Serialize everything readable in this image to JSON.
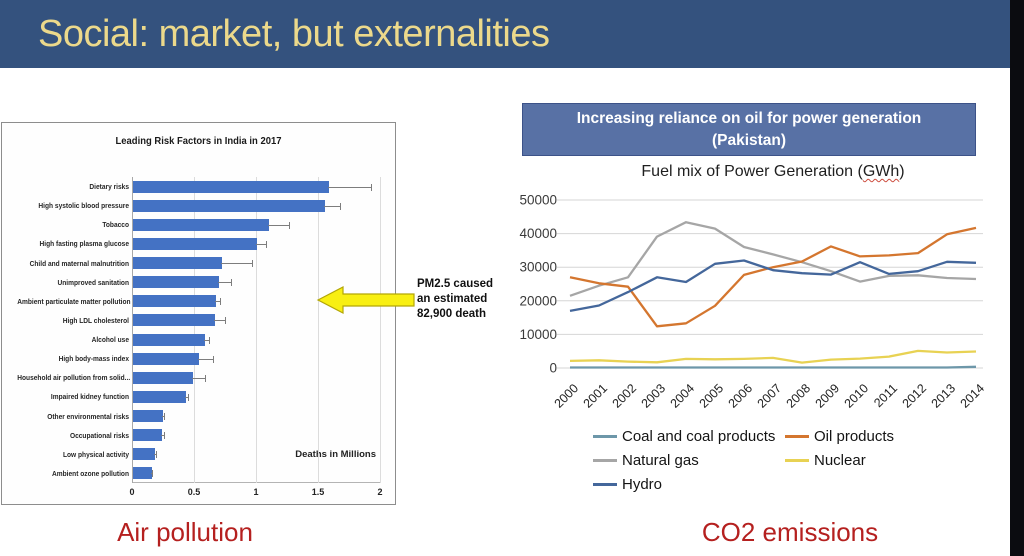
{
  "header": {
    "title": "Social: market, but externalities"
  },
  "captions": {
    "left": "Air pollution",
    "right": "CO2 emissions"
  },
  "banner": {
    "line1": "Increasing reliance on oil for power generation",
    "line2": "(Pakistan)"
  },
  "annotation": {
    "lines": [
      "PM2.5 caused",
      "an estimated",
      "82,900 death"
    ]
  },
  "colors": {
    "header_bg": "#34527e",
    "header_text": "#ecd98b",
    "edge_strip": "#0b0c10",
    "banner_bg": "#5871a5",
    "caption_red": "#b5201f",
    "bar_blue": "#4472c4",
    "arrow_yellow": "#f8ef12"
  },
  "chart_data": [
    {
      "type": "bar",
      "orientation": "horizontal",
      "title": "Leading Risk Factors in India in 2017",
      "xlabel": "Deaths in Millions",
      "xlim": [
        0,
        2
      ],
      "xticks": [
        0,
        0.5,
        1,
        1.5,
        2
      ],
      "grid": true,
      "bar_color": "#4472c4",
      "categories": [
        "Dietary risks",
        "High systolic blood pressure",
        "Tobacco",
        "High fasting plasma glucose",
        "Child and maternal malnutrition",
        "Unimproved sanitation",
        "Ambient particulate matter pollution",
        "High LDL cholesterol",
        "Alcohol use",
        "High body-mass index",
        "Household air pollution from solid...",
        "Impaired kidney function",
        "Other environmental risks",
        "Occupational risks",
        "Low physical activity",
        "Ambient ozone pollution"
      ],
      "values": [
        1.58,
        1.55,
        1.1,
        1.0,
        0.72,
        0.69,
        0.67,
        0.66,
        0.58,
        0.53,
        0.48,
        0.43,
        0.24,
        0.23,
        0.18,
        0.15
      ],
      "error_high": [
        1.93,
        1.68,
        1.27,
        1.08,
        0.97,
        0.8,
        0.71,
        0.75,
        0.62,
        0.65,
        0.59,
        0.45,
        0.26,
        0.26,
        0.19,
        0.16
      ]
    },
    {
      "type": "line",
      "title": "Fuel mix of Power Generation (GWh)",
      "subtitle_parts": {
        "prefix": "Fuel mix of Power Generation (",
        "unit": "GWh",
        "suffix": ")"
      },
      "x": [
        2000,
        2001,
        2002,
        2003,
        2004,
        2005,
        2006,
        2007,
        2008,
        2009,
        2010,
        2011,
        2012,
        2013,
        2014
      ],
      "ylim": [
        0,
        50000
      ],
      "yticks": [
        0,
        10000,
        20000,
        30000,
        40000,
        50000
      ],
      "grid": true,
      "legend_position": "bottom",
      "series": [
        {
          "name": "Coal and coal products",
          "color": "#6d97a9",
          "values": [
            150,
            150,
            150,
            150,
            150,
            150,
            150,
            150,
            150,
            150,
            150,
            150,
            150,
            150,
            350
          ]
        },
        {
          "name": "Oil products",
          "color": "#d4762f",
          "values": [
            27000,
            25200,
            24200,
            12400,
            13300,
            18500,
            27700,
            30000,
            31700,
            36200,
            33200,
            33500,
            34200,
            39800,
            41700
          ]
        },
        {
          "name": "Natural gas",
          "color": "#a6a6a6",
          "values": [
            21500,
            24500,
            27000,
            39100,
            43400,
            41500,
            36000,
            33800,
            31500,
            28800,
            25700,
            27400,
            27600,
            26800,
            26500
          ]
        },
        {
          "name": "Nuclear",
          "color": "#e8d253",
          "values": [
            2100,
            2300,
            1900,
            1700,
            2700,
            2600,
            2700,
            3000,
            1600,
            2500,
            2800,
            3400,
            5100,
            4600,
            4900
          ]
        },
        {
          "name": "Hydro",
          "color": "#44679b",
          "values": [
            17000,
            18600,
            22600,
            27000,
            25600,
            31000,
            32000,
            29100,
            28200,
            27800,
            31500,
            28000,
            28800,
            31600,
            31300
          ]
        }
      ]
    }
  ]
}
